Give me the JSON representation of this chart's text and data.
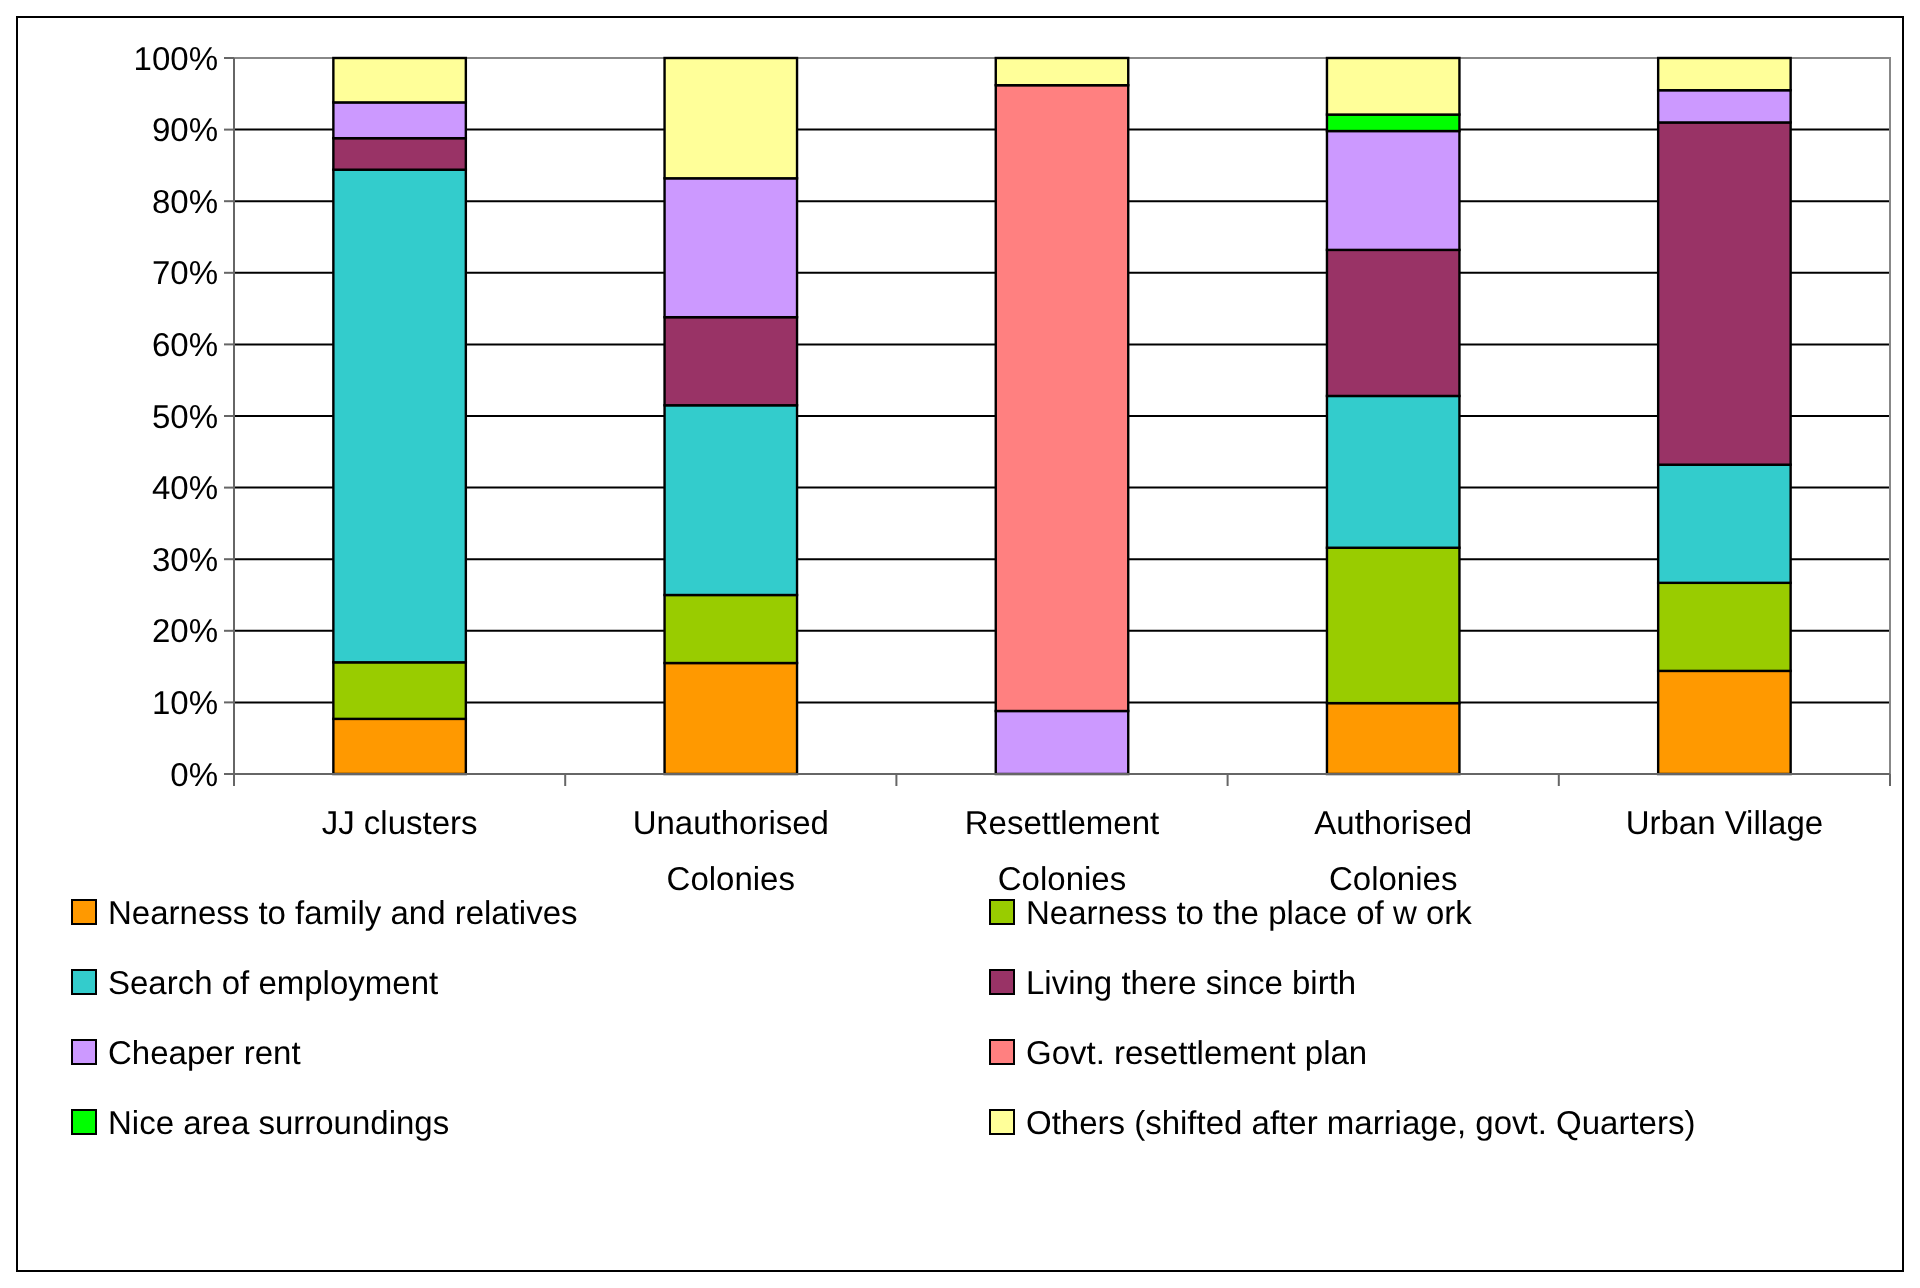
{
  "chart_data": {
    "type": "bar",
    "stacked": true,
    "categories": [
      "JJ clusters",
      "Unauthorised Colonies",
      "Resettlement Colonies",
      "Authorised Colonies",
      "Urban Village"
    ],
    "series": [
      {
        "name": "Nearness to family and relatives",
        "color": "#ff9900",
        "values": [
          7.7,
          15.5,
          0,
          9.9,
          14.4
        ]
      },
      {
        "name": "Nearness to the place of w ork",
        "color": "#99cc00",
        "values": [
          7.9,
          9.5,
          0,
          21.7,
          12.3
        ]
      },
      {
        "name": "Search of employment",
        "color": "#33cccc",
        "values": [
          68.8,
          26.5,
          0,
          21.2,
          16.5
        ]
      },
      {
        "name": "Living there since birth",
        "color": "#993366",
        "values": [
          4.4,
          12.3,
          0,
          20.4,
          47.8
        ]
      },
      {
        "name": "Cheaper rent",
        "color": "#cc99ff",
        "values": [
          5.0,
          19.4,
          8.8,
          16.6,
          4.5
        ]
      },
      {
        "name": "Govt. resettlement plan",
        "color": "#ff8080",
        "values": [
          0,
          0,
          87.4,
          0,
          0
        ]
      },
      {
        "name": "Nice area surroundings",
        "color": "#00ff00",
        "values": [
          0,
          0,
          0,
          2.3,
          0
        ]
      },
      {
        "name": "Others (shifted after marriage, govt. Quarters)",
        "color": "#ffff99",
        "values": [
          6.2,
          16.8,
          3.8,
          7.9,
          4.5
        ]
      }
    ],
    "ylim": [
      0,
      100
    ],
    "yticks": [
      {
        "value": 0,
        "label": "0%"
      },
      {
        "value": 10,
        "label": "10%"
      },
      {
        "value": 20,
        "label": "20%"
      },
      {
        "value": 30,
        "label": "30%"
      },
      {
        "value": 40,
        "label": "40%"
      },
      {
        "value": 50,
        "label": "50%"
      },
      {
        "value": 60,
        "label": "60%"
      },
      {
        "value": 70,
        "label": "70%"
      },
      {
        "value": 80,
        "label": "80%"
      },
      {
        "value": 90,
        "label": "90%"
      },
      {
        "value": 100,
        "label": "100%"
      }
    ],
    "grid": "y",
    "legend": "bottom"
  }
}
